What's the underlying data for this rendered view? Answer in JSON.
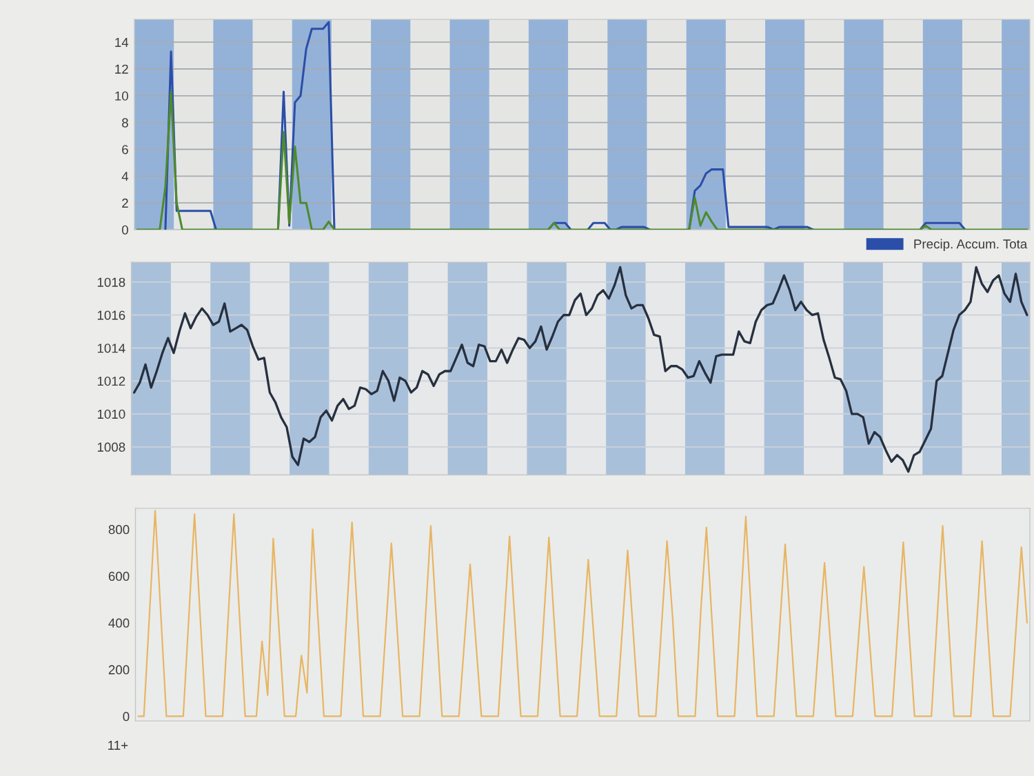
{
  "chart_data": [
    {
      "type": "line",
      "categories": [
        null,
        null,
        null,
        null,
        null,
        null,
        null,
        null,
        null,
        null,
        null,
        null,
        null,
        null,
        null,
        null,
        null,
        null,
        null,
        null,
        null,
        null,
        null,
        null,
        null,
        null,
        null,
        null,
        null,
        null,
        null,
        null,
        null,
        null,
        null,
        null,
        null,
        null,
        null,
        null,
        null,
        null,
        null,
        null,
        null,
        null,
        null,
        null,
        null,
        null,
        null,
        null,
        null,
        null,
        null,
        null,
        null,
        null,
        null,
        null,
        null,
        null,
        null,
        null,
        null,
        null,
        null,
        null,
        null,
        null,
        null,
        null,
        null,
        null,
        null,
        null,
        null,
        null,
        null,
        null,
        null,
        null,
        null,
        null,
        null,
        null,
        null,
        null,
        null,
        null,
        null,
        null,
        null,
        null,
        null,
        null,
        null,
        null,
        null,
        null,
        null,
        null,
        null,
        null,
        null,
        null,
        null,
        null,
        null,
        null,
        null,
        null,
        null,
        null,
        null,
        null,
        null,
        null,
        null,
        null,
        null,
        null,
        null,
        null,
        null,
        null,
        null,
        null,
        null,
        null,
        null,
        null,
        null,
        null,
        null,
        null,
        null,
        null,
        null,
        null,
        null,
        null,
        null,
        null,
        null,
        null,
        null,
        null,
        null,
        null,
        null,
        null,
        null,
        null,
        null,
        null,
        null,
        null,
        null
      ],
      "series": [
        {
          "name": "Precip. Accum. Tota",
          "color": "#2b4ea8",
          "values": [
            null,
            null,
            null,
            null,
            null,
            0,
            13.3,
            1.4,
            1.4,
            1.4,
            1.4,
            1.4,
            1.4,
            1.4,
            0,
            null,
            null,
            null,
            null,
            null,
            null,
            null,
            null,
            null,
            null,
            0,
            10.3,
            0.3,
            9.5,
            10.0,
            13.5,
            15.0,
            15.0,
            15.0,
            15.5,
            0,
            null,
            null,
            null,
            null,
            null,
            null,
            null,
            null,
            null,
            null,
            null,
            null,
            null,
            null,
            null,
            null,
            null,
            null,
            null,
            null,
            null,
            null,
            null,
            null,
            null,
            null,
            null,
            null,
            null,
            null,
            null,
            null,
            null,
            null,
            null,
            null,
            null,
            0,
            0.5,
            0.5,
            0.5,
            0,
            null,
            null,
            0,
            0.5,
            0.5,
            0.5,
            0,
            0,
            0.2,
            0.2,
            0.2,
            0.2,
            0.2,
            0,
            null,
            null,
            null,
            null,
            null,
            null,
            0,
            2.9,
            3.3,
            4.2,
            4.5,
            4.5,
            4.5,
            0.2,
            0.2,
            0.2,
            0.2,
            0.2,
            0.2,
            0.2,
            0.2,
            0,
            0.2,
            0.2,
            0.2,
            0.2,
            0.2,
            0.2,
            0,
            null,
            null,
            null,
            null,
            null,
            null,
            null,
            null,
            null,
            null,
            null,
            null,
            null,
            null,
            null,
            null,
            null,
            null,
            0,
            0.5,
            0.5,
            0.5,
            0.5,
            0.5,
            0.5,
            0.5,
            0,
            null,
            null,
            null,
            null,
            null,
            null,
            null,
            null,
            null,
            null,
            null
          ]
        },
        {
          "color": "#4f8a2c",
          "values": [
            0,
            0,
            0,
            0,
            0,
            3.2,
            10.3,
            2.0,
            0,
            0,
            0,
            0,
            0,
            0,
            0,
            0,
            0,
            0,
            0,
            0,
            0,
            0,
            0,
            0,
            0,
            0,
            7.3,
            0.5,
            6.2,
            2.0,
            2.0,
            0,
            0,
            0,
            0.6,
            0,
            0,
            0,
            0,
            0,
            0,
            0,
            0,
            0,
            0,
            0,
            0,
            0,
            0,
            0,
            0,
            0,
            0,
            0,
            0,
            0,
            0,
            0,
            0,
            0,
            0,
            0,
            0,
            0,
            0,
            0,
            0,
            0,
            0,
            0,
            0,
            0,
            0,
            0,
            0.5,
            0,
            0,
            0,
            0,
            0,
            0,
            0,
            0,
            0,
            0,
            0,
            0,
            0,
            0,
            0,
            0,
            0,
            0,
            0,
            0,
            0,
            0,
            0,
            0,
            2.4,
            0.3,
            1.3,
            0.6,
            0,
            0,
            0,
            0,
            0,
            0,
            0,
            0,
            0,
            0,
            0,
            0,
            0,
            0,
            0,
            0,
            0,
            0,
            0,
            0,
            0,
            0,
            0,
            0,
            0,
            0,
            0,
            0,
            0,
            0,
            0,
            0,
            0,
            0,
            0,
            0,
            0,
            0.3,
            0,
            0,
            0,
            0,
            0,
            0,
            0,
            0,
            0,
            0,
            0,
            0,
            0,
            0,
            0,
            0,
            0,
            0
          ]
        }
      ],
      "ylim": [
        0,
        15.7
      ],
      "yticks": [
        0,
        2,
        4,
        6,
        8,
        10,
        12,
        14
      ],
      "grid": "y",
      "tick_labels": "y",
      "legend": "bottom right"
    },
    {
      "type": "line",
      "categories": [
        null,
        null,
        null,
        null,
        null,
        null,
        null,
        null,
        null,
        null,
        null,
        null,
        null,
        null,
        null,
        null,
        null,
        null,
        null,
        null,
        null,
        null,
        null,
        null,
        null,
        null,
        null,
        null,
        null,
        null,
        null,
        null,
        null,
        null,
        null,
        null,
        null,
        null,
        null,
        null,
        null,
        null,
        null,
        null,
        null,
        null,
        null,
        null,
        null,
        null,
        null,
        null,
        null,
        null,
        null,
        null,
        null,
        null,
        null,
        null,
        null,
        null,
        null,
        null,
        null,
        null,
        null,
        null,
        null,
        null,
        null,
        null,
        null,
        null,
        null,
        null,
        null,
        null,
        null,
        null,
        null,
        null,
        null,
        null,
        null,
        null,
        null,
        null,
        null,
        null,
        null,
        null,
        null,
        null,
        null,
        null,
        null,
        null,
        null,
        null,
        null,
        null,
        null,
        null,
        null,
        null,
        null,
        null,
        null,
        null,
        null,
        null,
        null,
        null,
        null,
        null,
        null,
        null,
        null,
        null,
        null,
        null,
        null,
        null,
        null,
        null,
        null,
        null,
        null,
        null,
        null,
        null,
        null,
        null,
        null,
        null,
        null,
        null,
        null,
        null,
        null,
        null,
        null,
        null,
        null,
        null,
        null,
        null,
        null,
        null,
        null,
        null,
        null,
        null,
        null,
        null,
        null,
        null,
        null
      ],
      "series": [
        {
          "color": "#27303f",
          "values": [
            1011.3,
            1011.9,
            1013.0,
            1011.6,
            1012.6,
            1013.7,
            1014.6,
            1013.7,
            1015.0,
            1016.1,
            1015.2,
            1015.9,
            1016.4,
            1016.0,
            1015.4,
            1015.6,
            1016.7,
            1015.0,
            1015.2,
            1015.4,
            1015.1,
            1014.1,
            1013.3,
            1013.4,
            1011.3,
            1010.7,
            1009.8,
            1009.2,
            1007.4,
            1006.9,
            1008.5,
            1008.3,
            1008.6,
            1009.8,
            1010.2,
            1009.6,
            1010.5,
            1010.9,
            1010.3,
            1010.5,
            1011.6,
            1011.5,
            1011.2,
            1011.4,
            1012.6,
            1012.0,
            1010.8,
            1012.2,
            1012.0,
            1011.3,
            1011.6,
            1012.6,
            1012.4,
            1011.7,
            1012.4,
            1012.6,
            1012.6,
            1013.4,
            1014.2,
            1013.1,
            1012.9,
            1014.2,
            1014.1,
            1013.2,
            1013.2,
            1013.9,
            1013.1,
            1013.9,
            1014.6,
            1014.5,
            1014.0,
            1014.4,
            1015.3,
            1013.9,
            1014.7,
            1015.6,
            1016.0,
            1016.0,
            1016.9,
            1017.3,
            1016.0,
            1016.4,
            1017.2,
            1017.5,
            1017.0,
            1017.8,
            1018.9,
            1017.2,
            1016.4,
            1016.6,
            1016.6,
            1015.8,
            1014.8,
            1014.7,
            1012.6,
            1012.9,
            1012.9,
            1012.7,
            1012.2,
            1012.3,
            1013.2,
            1012.5,
            1011.9,
            1013.5,
            1013.6,
            1013.6,
            1013.6,
            1015.0,
            1014.4,
            1014.3,
            1015.6,
            1016.3,
            1016.6,
            1016.7,
            1017.5,
            1018.4,
            1017.5,
            1016.3,
            1016.8,
            1016.3,
            1016.0,
            1016.1,
            1014.5,
            1013.4,
            1012.2,
            1012.1,
            1011.4,
            1010.0,
            1010.0,
            1009.8,
            1008.2,
            1008.9,
            1008.6,
            1007.8,
            1007.1,
            1007.5,
            1007.2,
            1006.5,
            1007.5,
            1007.7,
            1008.4,
            1009.1,
            1012.0,
            1012.3,
            1013.7,
            1015.1,
            1016.0,
            1016.3,
            1016.8,
            1018.9,
            1017.9,
            1017.4,
            1018.1,
            1018.4,
            1017.3,
            1016.8,
            1018.5,
            1016.8,
            1016.0
          ]
        }
      ],
      "ylim": [
        1006.3,
        1019.2
      ],
      "yticks": [
        1008,
        1010,
        1012,
        1014,
        1016,
        1018
      ],
      "grid": "y",
      "tick_labels": "y"
    },
    {
      "type": "line",
      "categories": [
        null,
        null,
        null,
        null,
        null,
        null,
        null,
        null,
        null,
        null,
        null,
        null,
        null,
        null,
        null,
        null,
        null,
        null,
        null,
        null,
        null,
        null,
        null,
        null,
        null,
        null,
        null,
        null,
        null,
        null,
        null,
        null,
        null,
        null,
        null,
        null,
        null,
        null,
        null,
        null,
        null,
        null,
        null,
        null,
        null,
        null,
        null,
        null,
        null,
        null,
        null,
        null,
        null,
        null,
        null,
        null,
        null,
        null,
        null,
        null,
        null,
        null,
        null,
        null,
        null,
        null,
        null,
        null,
        null,
        null,
        null,
        null,
        null,
        null,
        null,
        null,
        null,
        null,
        null,
        null,
        null,
        null,
        null,
        null,
        null,
        null,
        null,
        null,
        null,
        null,
        null,
        null,
        null,
        null,
        null,
        null,
        null,
        null,
        null,
        null,
        null,
        null,
        null,
        null,
        null,
        null,
        null,
        null,
        null,
        null,
        null,
        null,
        null,
        null,
        null,
        null,
        null,
        null,
        null,
        null,
        null,
        null,
        null,
        null,
        null,
        null,
        null,
        null,
        null,
        null,
        null,
        null,
        null,
        null,
        null,
        null,
        null,
        null,
        null,
        null,
        null,
        null,
        null,
        null,
        null,
        null,
        null,
        null,
        null,
        null,
        null,
        null,
        null,
        null,
        null,
        null,
        null,
        null,
        null
      ],
      "series": [
        {
          "color": "#e8b563",
          "values": [
            0,
            0,
            440,
            880,
            440,
            0,
            0,
            0,
            0,
            430,
            865,
            430,
            0,
            0,
            0,
            0,
            430,
            865,
            430,
            0,
            0,
            0,
            320,
            90,
            760,
            380,
            0,
            0,
            0,
            260,
            100,
            800,
            400,
            0,
            0,
            0,
            0,
            415,
            830,
            420,
            0,
            0,
            0,
            0,
            370,
            740,
            380,
            0,
            0,
            0,
            0,
            400,
            815,
            410,
            0,
            0,
            0,
            0,
            325,
            650,
            325,
            0,
            0,
            0,
            0,
            385,
            770,
            385,
            0,
            0,
            0,
            0,
            380,
            765,
            380,
            0,
            0,
            0,
            0,
            335,
            670,
            335,
            0,
            0,
            0,
            0,
            355,
            710,
            355,
            0,
            0,
            0,
            0,
            375,
            750,
            420,
            0,
            0,
            0,
            0,
            450,
            808,
            405,
            0,
            0,
            0,
            0,
            430,
            855,
            430,
            0,
            0,
            0,
            0,
            370,
            736,
            370,
            0,
            0,
            0,
            0,
            330,
            657,
            330,
            0,
            0,
            0,
            0,
            320,
            640,
            320,
            0,
            0,
            0,
            0,
            370,
            745,
            370,
            0,
            0,
            0,
            0,
            410,
            815,
            410,
            0,
            0,
            0,
            0,
            375,
            750,
            375,
            0,
            0,
            0,
            0,
            360,
            723,
            400
          ]
        }
      ],
      "ylim": [
        -20,
        890
      ],
      "yticks": [
        0,
        200,
        400,
        600,
        800
      ],
      "tick_labels": "y",
      "annotations": [
        "11+"
      ]
    }
  ]
}
